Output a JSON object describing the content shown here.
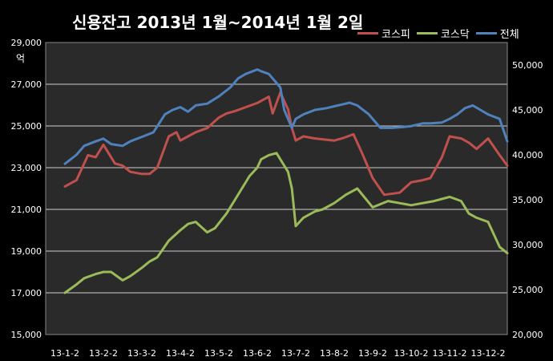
{
  "chart_data": {
    "type": "line",
    "title": "신용잔고 2013년 1월~2014년 1월 2일",
    "y_left": {
      "ticks": [
        "29,000",
        "27,000",
        "25,000",
        "23,000",
        "21,000",
        "19,000",
        "17,000",
        "15,000"
      ],
      "range": [
        15000,
        29000
      ],
      "unit": "억"
    },
    "y_right": {
      "ticks": [
        "50,000",
        "45,000",
        "40,000",
        "35,000",
        "30,000",
        "25,000",
        "20,000"
      ],
      "range": [
        20000,
        52500
      ]
    },
    "x_ticks": [
      "13-1-2",
      "13-2-2",
      "13-3-2",
      "13-4-2",
      "13-5-2",
      "13-6-2",
      "13-7-2",
      "13-8-2",
      "13-9-2",
      "13-10-2",
      "13-11-2",
      "13-12-2"
    ],
    "grid": "horizontal",
    "legend_position": "top-right",
    "series": [
      {
        "name": "코스피",
        "axis": "left",
        "color": "#c0504d",
        "x": [
          0,
          0.3,
          0.6,
          0.8,
          1.0,
          1.3,
          1.5,
          1.7,
          2.0,
          2.2,
          2.4,
          2.7,
          2.9,
          3.0,
          3.2,
          3.4,
          3.7,
          4.0,
          4.2,
          4.4,
          4.7,
          5.0,
          5.1,
          5.3,
          5.4,
          5.6,
          5.8,
          5.9,
          6.0,
          6.2,
          6.5,
          7.0,
          7.2,
          7.5,
          7.7,
          8.0,
          8.3,
          8.7,
          9.0,
          9.3,
          9.5,
          9.8,
          10.0,
          10.3,
          10.5,
          10.7,
          11.0,
          11.3,
          11.5
        ],
        "y": [
          22100,
          22400,
          23600,
          23500,
          24100,
          23200,
          23100,
          22800,
          22700,
          22700,
          23000,
          24500,
          24700,
          24300,
          24500,
          24700,
          24900,
          25400,
          25600,
          25700,
          25900,
          26100,
          26200,
          26400,
          25600,
          26600,
          25800,
          24900,
          24300,
          24500,
          24400,
          24300,
          24400,
          24600,
          23800,
          22500,
          21700,
          21800,
          22300,
          22400,
          22500,
          23500,
          24500,
          24400,
          24200,
          23900,
          24400,
          23600,
          23100
        ]
      },
      {
        "name": "코스닥",
        "axis": "left",
        "color": "#9bbb59",
        "x": [
          0,
          0.3,
          0.5,
          0.8,
          1.0,
          1.2,
          1.5,
          1.7,
          2.0,
          2.2,
          2.4,
          2.7,
          3.0,
          3.2,
          3.4,
          3.7,
          3.9,
          4.2,
          4.4,
          4.6,
          4.8,
          5.0,
          5.1,
          5.3,
          5.5,
          5.7,
          5.8,
          5.9,
          6.0,
          6.2,
          6.5,
          6.7,
          7.0,
          7.3,
          7.6,
          8.0,
          8.4,
          8.7,
          9.0,
          9.3,
          9.6,
          9.8,
          10.0,
          10.3,
          10.5,
          10.7,
          11.0,
          11.3,
          11.5
        ],
        "y": [
          17000,
          17400,
          17700,
          17900,
          18000,
          18000,
          17600,
          17800,
          18200,
          18500,
          18700,
          19500,
          20000,
          20300,
          20400,
          19900,
          20100,
          20800,
          21400,
          22000,
          22600,
          23000,
          23400,
          23600,
          23700,
          23100,
          22800,
          22000,
          20200,
          20600,
          20900,
          21000,
          21300,
          21700,
          22000,
          21100,
          21400,
          21300,
          21200,
          21300,
          21400,
          21500,
          21600,
          21400,
          20800,
          20600,
          20400,
          19200,
          18900
        ]
      },
      {
        "name": "전체",
        "axis": "right",
        "color": "#4f81bd",
        "x": [
          0,
          0.3,
          0.5,
          0.8,
          1.0,
          1.2,
          1.5,
          1.7,
          2.0,
          2.3,
          2.6,
          2.8,
          3.0,
          3.2,
          3.4,
          3.7,
          4.0,
          4.3,
          4.5,
          4.7,
          5.0,
          5.1,
          5.3,
          5.5,
          5.6,
          5.7,
          5.9,
          6.0,
          6.2,
          6.5,
          6.8,
          7.0,
          7.2,
          7.4,
          7.6,
          7.9,
          8.2,
          8.5,
          8.8,
          9.0,
          9.3,
          9.5,
          9.8,
          10.0,
          10.2,
          10.4,
          10.6,
          10.8,
          11.0,
          11.3,
          11.5
        ],
        "y": [
          39000,
          40000,
          41000,
          41500,
          41800,
          41200,
          41000,
          41500,
          42000,
          42500,
          44500,
          45000,
          45300,
          44800,
          45500,
          45700,
          46500,
          47500,
          48500,
          49000,
          49500,
          49300,
          49000,
          48000,
          47500,
          45000,
          43000,
          44000,
          44500,
          45000,
          45200,
          45400,
          45600,
          45800,
          45500,
          44500,
          43000,
          43000,
          43100,
          43200,
          43500,
          43500,
          43600,
          44000,
          44500,
          45200,
          45500,
          45000,
          44500,
          44000,
          41500
        ]
      }
    ]
  }
}
